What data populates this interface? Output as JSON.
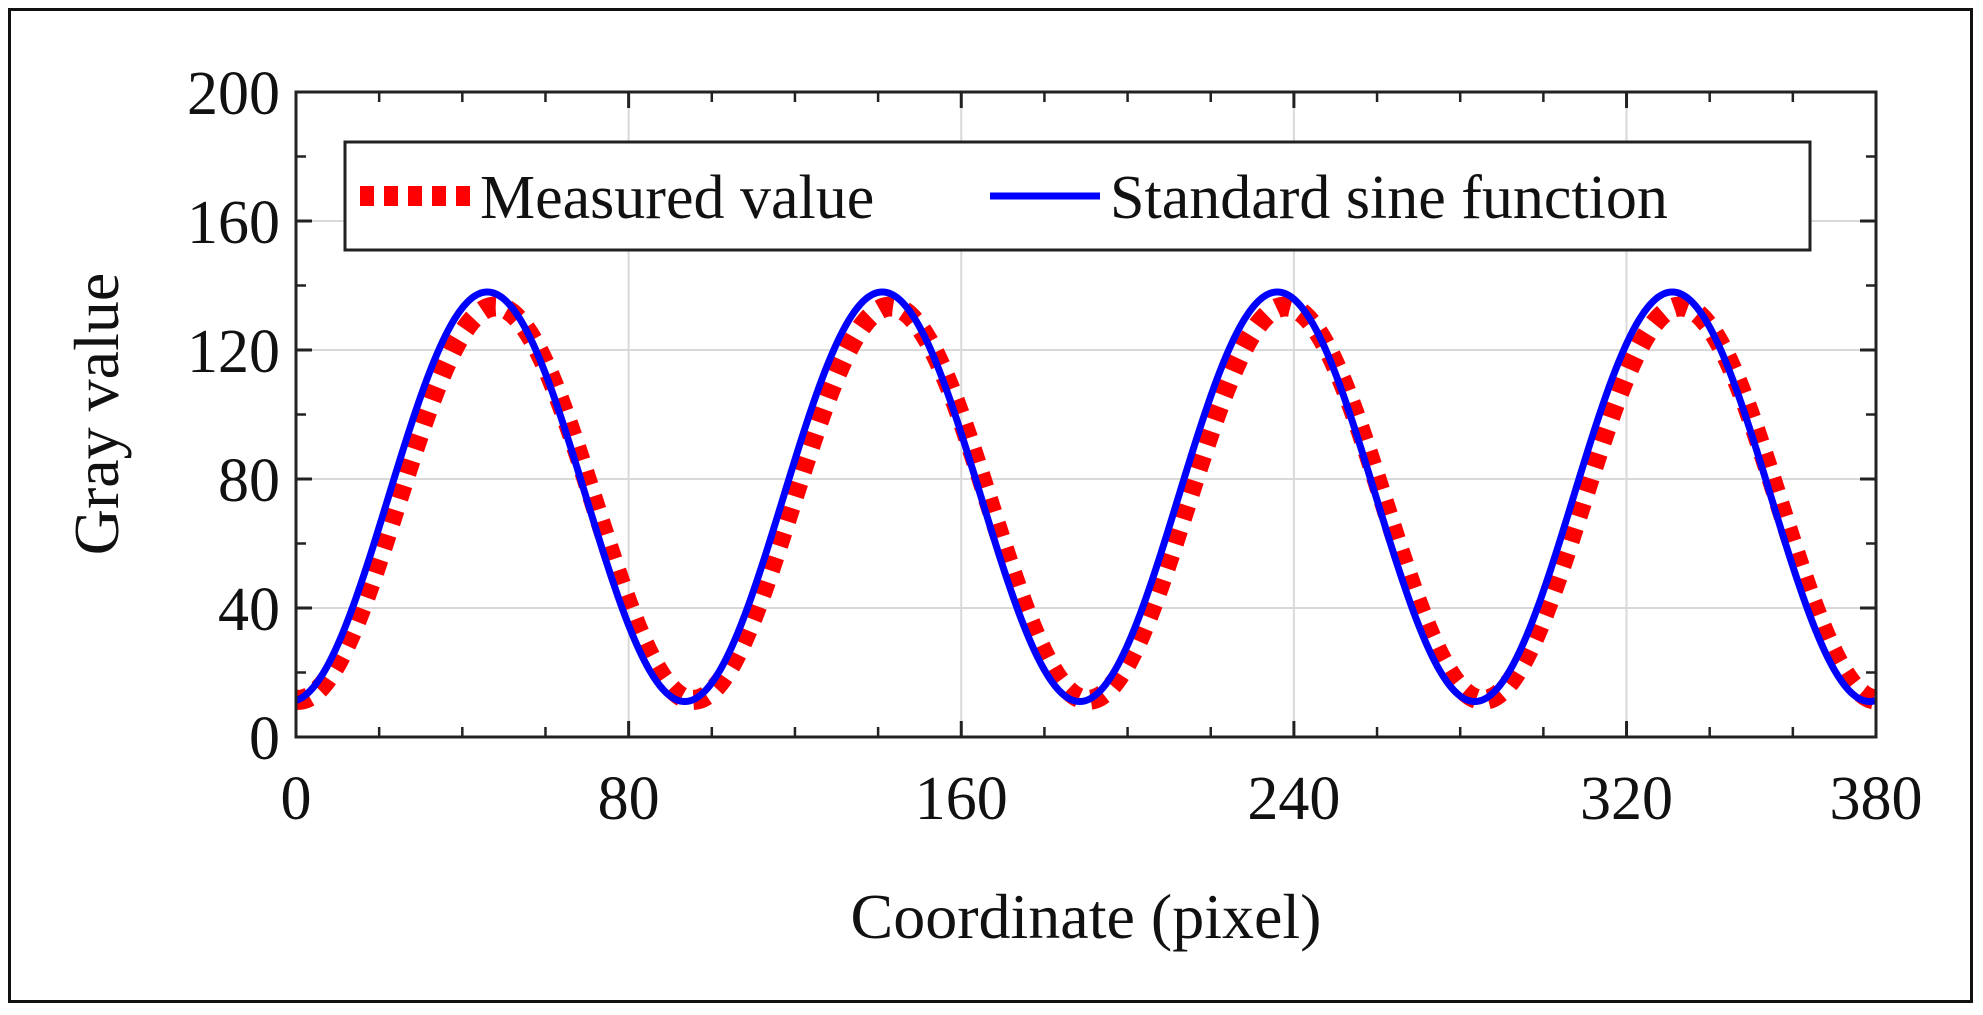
{
  "chart_data": {
    "type": "line",
    "title": "",
    "xlabel": "Coordinate (pixel)",
    "ylabel": "Gray value",
    "xlim": [
      0,
      380
    ],
    "ylim": [
      0,
      200
    ],
    "xticks": [
      "0",
      "80",
      "160",
      "240",
      "320",
      "380"
    ],
    "xtick_values": [
      0,
      80,
      160,
      240,
      320,
      380
    ],
    "yticks": [
      "0",
      "40",
      "80",
      "120",
      "160",
      "200"
    ],
    "ytick_values": [
      0,
      40,
      80,
      120,
      160,
      200
    ],
    "grid": true,
    "legend_position": "top",
    "series": [
      {
        "name": "Measured value",
        "style": "dotted",
        "color": "#ff0000",
        "function": {
          "offset": 72.5,
          "amplitude": 61,
          "period": 95,
          "peak_x": 48
        }
      },
      {
        "name": "Standard sine function",
        "style": "solid",
        "color": "#0000ff",
        "function": {
          "offset": 74.5,
          "amplitude": 63.5,
          "period": 95,
          "peak_x": 46
        }
      }
    ]
  }
}
